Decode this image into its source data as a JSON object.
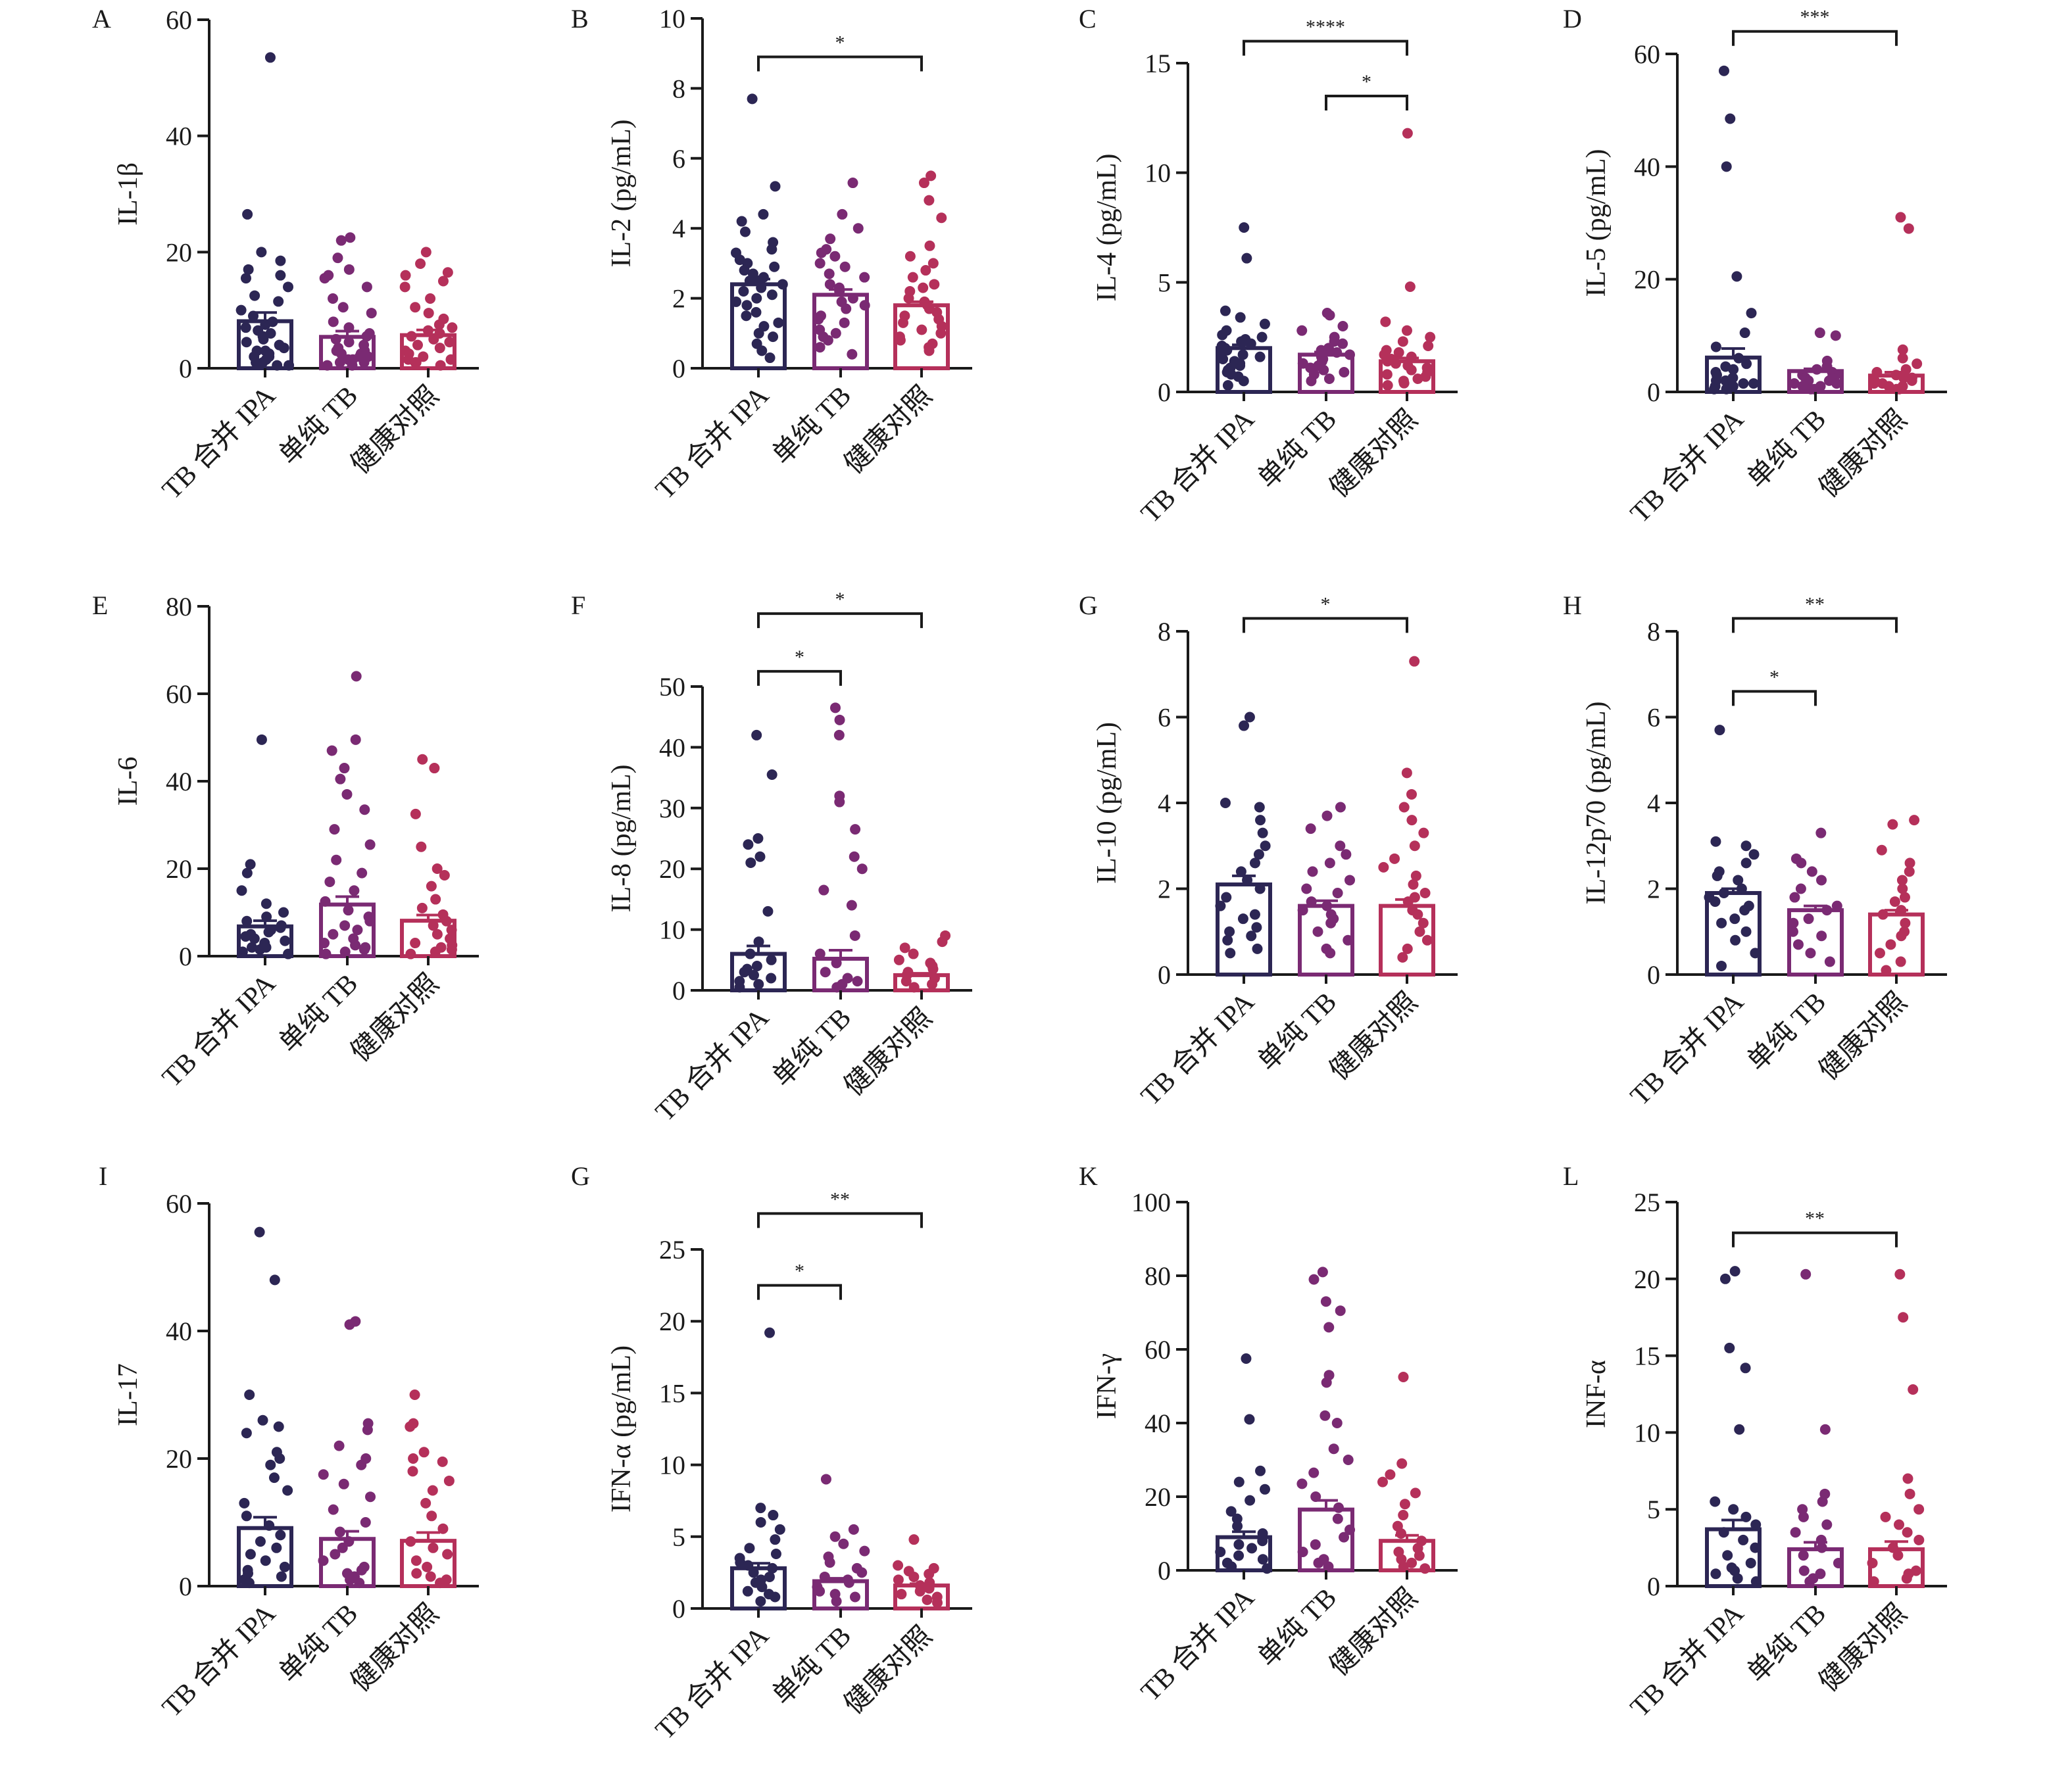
{
  "groups": [
    "TB 合并 IPA",
    "单纯 TB",
    "健康对照"
  ],
  "colors": {
    "TB 合并 IPA": "#2c2654",
    "单纯 TB": "#7a2a73",
    "健康对照": "#b5305a",
    "axis": "#1a1a1a"
  },
  "chart_data": [
    {
      "panel": "A",
      "type": "bar",
      "ylabel": "IL-1β",
      "ylim": [
        0,
        60
      ],
      "yticks": [
        0,
        20,
        40,
        60
      ],
      "categories": [
        "TB 合并 IPA",
        "单纯 TB",
        "健康对照"
      ],
      "values": [
        8.1,
        5.4,
        5.7
      ],
      "errors": [
        1.5,
        1.0,
        0.9
      ],
      "points": [
        [
          53.5,
          26.5,
          20.0,
          18.5,
          17.0,
          16.0,
          15.5,
          14.0,
          12.5,
          11.5,
          10.0,
          9.0,
          8.0,
          7.5,
          7.0,
          6.5,
          6.0,
          5.5,
          5.0,
          4.5,
          4.0,
          3.5,
          3.0,
          3.0,
          2.5,
          2.0,
          2.0,
          1.5,
          1.0,
          1.0,
          0.5,
          0.5
        ],
        [
          22.5,
          22.0,
          19.0,
          17.0,
          16.0,
          15.5,
          14.0,
          12.0,
          10.5,
          9.5,
          8.0,
          7.0,
          6.0,
          5.5,
          5.0,
          4.5,
          4.0,
          3.5,
          3.0,
          3.0,
          2.5,
          2.5,
          2.0,
          2.0,
          1.5,
          1.5,
          1.0,
          1.0,
          0.5,
          0.5
        ],
        [
          20.0,
          18.0,
          16.5,
          16.0,
          15.0,
          14.0,
          12.0,
          10.5,
          9.5,
          8.5,
          7.5,
          7.0,
          6.5,
          6.0,
          5.5,
          5.0,
          4.5,
          4.0,
          3.5,
          3.0,
          2.5,
          2.0,
          1.5,
          1.5,
          1.0,
          1.0,
          0.5
        ]
      ],
      "significance": []
    },
    {
      "panel": "B",
      "type": "bar",
      "ylabel": "IL-2 (pg/mL)",
      "ylim": [
        0,
        10
      ],
      "yticks": [
        0,
        2,
        4,
        6,
        8,
        10
      ],
      "categories": [
        "TB 合并 IPA",
        "单纯 TB",
        "健康对照"
      ],
      "values": [
        2.4,
        2.1,
        1.8
      ],
      "errors": [
        0.15,
        0.15,
        0.1
      ],
      "points": [
        [
          7.7,
          5.2,
          4.4,
          4.2,
          3.9,
          3.6,
          3.4,
          3.3,
          3.1,
          3.0,
          2.9,
          2.8,
          2.7,
          2.6,
          2.5,
          2.5,
          2.4,
          2.3,
          2.2,
          2.1,
          2.0,
          1.9,
          1.8,
          1.6,
          1.5,
          1.3,
          1.2,
          1.0,
          0.9,
          0.7,
          0.5,
          0.3
        ],
        [
          5.3,
          4.4,
          4.0,
          3.7,
          3.4,
          3.3,
          3.2,
          3.0,
          2.9,
          2.7,
          2.6,
          2.4,
          2.3,
          2.2,
          2.0,
          1.9,
          1.8,
          1.7,
          1.5,
          1.4,
          1.3,
          1.1,
          1.0,
          0.9,
          0.8,
          0.6,
          0.4
        ],
        [
          5.5,
          5.3,
          4.8,
          4.3,
          3.5,
          3.2,
          3.0,
          2.8,
          2.6,
          2.4,
          2.3,
          2.2,
          2.0,
          1.9,
          1.8,
          1.7,
          1.6,
          1.5,
          1.4,
          1.3,
          1.2,
          1.1,
          1.0,
          0.9,
          0.8,
          0.7,
          0.6,
          0.5
        ]
      ],
      "significance": [
        {
          "from": 0,
          "to": 2,
          "label": "*",
          "y": 8.9
        }
      ]
    },
    {
      "panel": "C",
      "type": "bar",
      "ylabel": "IL-4 (pg/mL)",
      "ylim": [
        0,
        15
      ],
      "yticks": [
        0,
        5,
        10,
        15
      ],
      "categories": [
        "TB 合并 IPA",
        "单纯 TB",
        "健康对照"
      ],
      "values": [
        2.0,
        1.7,
        1.4
      ],
      "errors": [
        0.15,
        0.12,
        0.15
      ],
      "points": [
        [
          7.5,
          6.1,
          3.7,
          3.4,
          3.1,
          2.8,
          2.6,
          2.5,
          2.4,
          2.3,
          2.2,
          2.1,
          2.0,
          1.9,
          1.8,
          1.7,
          1.6,
          1.5,
          1.4,
          1.3,
          1.2,
          1.1,
          1.0,
          0.9,
          0.8,
          0.7,
          0.5,
          0.3
        ],
        [
          3.6,
          3.5,
          3.0,
          2.8,
          2.5,
          2.3,
          2.2,
          2.0,
          1.9,
          1.8,
          1.7,
          1.6,
          1.5,
          1.4,
          1.3,
          1.2,
          1.1,
          1.0,
          0.9,
          0.8,
          0.6,
          0.5
        ],
        [
          11.8,
          4.8,
          3.2,
          2.8,
          2.5,
          2.3,
          2.1,
          1.9,
          1.8,
          1.7,
          1.6,
          1.5,
          1.4,
          1.3,
          1.2,
          1.1,
          1.0,
          0.9,
          0.8,
          0.7,
          0.6,
          0.5,
          0.4,
          0.3
        ]
      ],
      "significance": [
        {
          "from": 0,
          "to": 2,
          "label": "****",
          "y": 16.0
        },
        {
          "from": 1,
          "to": 2,
          "label": "*",
          "y": 13.5
        }
      ]
    },
    {
      "panel": "D",
      "type": "bar",
      "ylabel": "IL-5 (pg/mL)",
      "ylim": [
        0,
        60
      ],
      "yticks": [
        0,
        20,
        40,
        60
      ],
      "categories": [
        "TB 合并 IPA",
        "单纯 TB",
        "健康对照"
      ],
      "values": [
        6.1,
        3.7,
        2.9
      ],
      "errors": [
        1.6,
        0.4,
        0.6
      ],
      "points": [
        [
          57.0,
          48.5,
          40.0,
          20.5,
          14.0,
          10.5,
          8.0,
          6.0,
          5.0,
          4.5,
          4.0,
          3.5,
          3.0,
          2.5,
          2.0,
          2.0,
          1.5,
          1.5,
          1.0,
          1.0,
          0.5,
          0.5
        ],
        [
          10.5,
          10.0,
          5.5,
          4.5,
          4.0,
          3.5,
          3.0,
          3.0,
          2.5,
          2.5,
          2.0,
          2.0,
          1.5,
          1.5,
          1.0,
          1.0,
          0.5,
          0.5
        ],
        [
          31.0,
          29.0,
          7.5,
          6.0,
          5.0,
          4.0,
          3.5,
          3.0,
          2.5,
          2.5,
          2.0,
          2.0,
          1.5,
          1.5,
          1.0,
          1.0,
          0.5,
          0.5
        ]
      ],
      "significance": [
        {
          "from": 0,
          "to": 2,
          "label": "***",
          "y": 64.0
        }
      ]
    },
    {
      "panel": "E",
      "type": "bar",
      "ylabel": "IL-6",
      "ylim": [
        0,
        80
      ],
      "yticks": [
        0,
        20,
        40,
        60,
        80
      ],
      "categories": [
        "TB 合并 IPA",
        "单纯 TB",
        "健康对照"
      ],
      "values": [
        6.8,
        11.8,
        8.1
      ],
      "errors": [
        1.3,
        1.8,
        1.3
      ],
      "points": [
        [
          49.5,
          21.0,
          19.0,
          15.0,
          12.0,
          10.0,
          9.0,
          8.0,
          7.0,
          6.5,
          6.0,
          5.5,
          5.0,
          4.5,
          4.0,
          3.5,
          3.0,
          2.5,
          2.0,
          2.0,
          1.5,
          1.0,
          0.5
        ],
        [
          64.0,
          49.5,
          47.0,
          43.0,
          40.5,
          37.0,
          33.5,
          29.0,
          25.5,
          22.0,
          19.0,
          17.0,
          15.0,
          12.5,
          10.5,
          9.0,
          8.0,
          7.0,
          6.0,
          5.0,
          4.0,
          3.0,
          2.5,
          2.0,
          1.5,
          1.0,
          0.5
        ],
        [
          45.0,
          43.0,
          32.5,
          25.0,
          20.0,
          18.5,
          16.0,
          13.0,
          11.0,
          9.5,
          8.0,
          7.0,
          6.0,
          5.0,
          4.0,
          3.0,
          2.5,
          2.0,
          1.5,
          1.0,
          0.5
        ]
      ],
      "significance": []
    },
    {
      "panel": "F",
      "type": "bar",
      "ylabel": "IL-8 (pg/mL)",
      "ylim": [
        0,
        50
      ],
      "yticks": [
        0,
        10,
        20,
        30,
        40,
        50
      ],
      "categories": [
        "TB 合并 IPA",
        "单纯 TB",
        "健康对照"
      ],
      "values": [
        6.0,
        5.2,
        2.5
      ],
      "errors": [
        1.3,
        1.4,
        0.3
      ],
      "points": [
        [
          42.0,
          35.5,
          25.0,
          24.0,
          22.0,
          21.0,
          13.0,
          8.0,
          6.0,
          5.0,
          4.0,
          3.5,
          3.0,
          2.5,
          2.0,
          1.5,
          1.0,
          0.5
        ],
        [
          46.5,
          44.5,
          42.0,
          32.0,
          31.0,
          26.5,
          22.0,
          20.0,
          16.5,
          14.0,
          9.0,
          6.0,
          4.5,
          3.0,
          2.0,
          1.5,
          1.0,
          0.5
        ],
        [
          9.0,
          8.0,
          7.0,
          6.0,
          5.0,
          4.5,
          4.0,
          3.5,
          3.0,
          2.5,
          2.0,
          1.5,
          1.0,
          0.5
        ]
      ],
      "significance": [
        {
          "from": 0,
          "to": 2,
          "label": "*",
          "y": 62.0
        },
        {
          "from": 0,
          "to": 1,
          "label": "*",
          "y": 52.5
        }
      ]
    },
    {
      "panel": "G",
      "type": "bar",
      "ylabel": "IL-10 (pg/mL)",
      "ylim": [
        0,
        8
      ],
      "yticks": [
        0,
        2,
        4,
        6,
        8
      ],
      "categories": [
        "TB 合并 IPA",
        "单纯 TB",
        "健康对照"
      ],
      "values": [
        2.1,
        1.6,
        1.6
      ],
      "errors": [
        0.2,
        0.12,
        0.15
      ],
      "points": [
        [
          6.0,
          5.8,
          4.0,
          3.9,
          3.6,
          3.3,
          3.0,
          2.8,
          2.6,
          2.4,
          2.2,
          2.0,
          1.8,
          1.6,
          1.4,
          1.3,
          1.1,
          1.0,
          0.9,
          0.8,
          0.6,
          0.5
        ],
        [
          3.9,
          3.7,
          3.4,
          3.0,
          2.8,
          2.6,
          2.4,
          2.2,
          2.0,
          1.9,
          1.7,
          1.6,
          1.5,
          1.4,
          1.3,
          1.2,
          1.0,
          0.8,
          0.6,
          0.5
        ],
        [
          7.3,
          4.7,
          4.2,
          3.9,
          3.6,
          3.3,
          3.0,
          2.7,
          2.5,
          2.3,
          2.1,
          1.9,
          1.8,
          1.7,
          1.5,
          1.4,
          1.2,
          1.0,
          0.8,
          0.6,
          0.4
        ]
      ],
      "significance": [
        {
          "from": 0,
          "to": 2,
          "label": "*",
          "y": 8.3
        }
      ]
    },
    {
      "panel": "H",
      "type": "bar",
      "ylabel": "IL-12p70 (pg/mL)",
      "ylim": [
        0,
        8
      ],
      "yticks": [
        0,
        2,
        4,
        6,
        8
      ],
      "categories": [
        "TB 合并 IPA",
        "单纯 TB",
        "健康对照"
      ],
      "values": [
        1.9,
        1.5,
        1.4
      ],
      "errors": [
        0.1,
        0.1,
        0.1
      ],
      "points": [
        [
          5.7,
          3.1,
          3.0,
          2.8,
          2.6,
          2.4,
          2.3,
          2.2,
          2.0,
          1.9,
          1.8,
          1.7,
          1.6,
          1.5,
          1.3,
          1.2,
          1.0,
          0.8,
          0.5,
          0.2
        ],
        [
          3.3,
          2.7,
          2.6,
          2.4,
          2.2,
          2.0,
          1.8,
          1.6,
          1.5,
          1.3,
          1.2,
          1.0,
          0.9,
          0.7,
          0.5,
          0.3
        ],
        [
          3.6,
          3.5,
          2.9,
          2.6,
          2.4,
          2.2,
          2.0,
          1.8,
          1.7,
          1.5,
          1.4,
          1.2,
          1.0,
          0.9,
          0.7,
          0.5,
          0.3,
          0.1
        ]
      ],
      "significance": [
        {
          "from": 0,
          "to": 2,
          "label": "**",
          "y": 8.3
        },
        {
          "from": 0,
          "to": 1,
          "label": "*",
          "y": 6.6
        }
      ]
    },
    {
      "panel": "I",
      "type": "bar",
      "ylabel": "IL-17",
      "ylim": [
        0,
        60
      ],
      "yticks": [
        0,
        20,
        40,
        60
      ],
      "categories": [
        "TB 合并 IPA",
        "单纯 TB",
        "健康对照"
      ],
      "values": [
        9.1,
        7.4,
        7.1
      ],
      "errors": [
        1.7,
        1.2,
        1.3
      ],
      "points": [
        [
          55.5,
          48.0,
          30.0,
          26.0,
          25.0,
          24.0,
          21.0,
          20.0,
          19.0,
          17.0,
          15.0,
          13.0,
          11.0,
          9.5,
          8.0,
          7.0,
          6.0,
          5.0,
          4.0,
          3.0,
          2.5,
          2.0,
          1.5,
          1.0,
          0.5
        ],
        [
          41.5,
          41.0,
          25.5,
          24.5,
          22.0,
          20.0,
          19.0,
          17.5,
          16.0,
          14.0,
          12.0,
          10.0,
          8.5,
          7.0,
          6.0,
          5.0,
          4.0,
          3.0,
          2.5,
          2.0,
          1.5,
          1.0,
          0.5
        ],
        [
          30.0,
          25.5,
          25.0,
          21.0,
          20.0,
          19.5,
          18.0,
          16.5,
          15.0,
          13.0,
          11.0,
          9.0,
          7.0,
          6.0,
          5.0,
          4.0,
          3.0,
          2.0,
          1.5,
          1.0,
          0.5
        ]
      ],
      "significance": []
    },
    {
      "panel": "G",
      "type": "bar",
      "ylabel": "IFN-α (pg/mL)",
      "ylim": [
        0,
        25
      ],
      "yticks": [
        0,
        5,
        10,
        15,
        20,
        25
      ],
      "categories": [
        "TB 合并 IPA",
        "单纯 TB",
        "健康对照"
      ],
      "values": [
        2.8,
        1.9,
        1.6
      ],
      "errors": [
        0.35,
        0.2,
        0.12
      ],
      "points": [
        [
          19.2,
          7.0,
          6.5,
          6.0,
          5.5,
          4.8,
          4.2,
          3.8,
          3.5,
          3.2,
          3.0,
          2.8,
          2.5,
          2.2,
          2.0,
          1.8,
          1.5,
          1.2,
          1.0,
          0.8,
          0.5
        ],
        [
          9.0,
          5.5,
          5.0,
          4.5,
          4.0,
          3.6,
          3.2,
          2.8,
          2.5,
          2.2,
          2.0,
          1.8,
          1.5,
          1.2,
          1.0,
          0.8,
          0.5
        ],
        [
          4.8,
          3.0,
          2.8,
          2.6,
          2.4,
          2.2,
          2.0,
          1.8,
          1.6,
          1.4,
          1.2,
          1.0,
          0.8,
          0.6,
          0.4
        ]
      ],
      "significance": [
        {
          "from": 0,
          "to": 2,
          "label": "**",
          "y": 27.5
        },
        {
          "from": 0,
          "to": 1,
          "label": "*",
          "y": 22.5
        }
      ]
    },
    {
      "panel": "K",
      "type": "bar",
      "ylabel": "IFN-γ",
      "ylim": [
        0,
        100
      ],
      "yticks": [
        0,
        20,
        40,
        60,
        80,
        100
      ],
      "categories": [
        "TB 合并 IPA",
        "单纯 TB",
        "健康对照"
      ],
      "values": [
        9.0,
        16.5,
        8.0
      ],
      "errors": [
        1.5,
        2.5,
        1.5
      ],
      "points": [
        [
          57.5,
          41.0,
          27.0,
          24.0,
          22.0,
          19.0,
          16.0,
          14.0,
          12.0,
          10.0,
          8.0,
          7.0,
          6.0,
          5.0,
          4.0,
          3.0,
          2.0,
          1.0,
          0.5
        ],
        [
          81.0,
          79.0,
          73.0,
          70.5,
          66.0,
          53.0,
          51.0,
          42.0,
          40.0,
          33.0,
          30.0,
          26.5,
          23.5,
          20.0,
          17.0,
          14.0,
          11.0,
          9.0,
          7.0,
          5.0,
          3.0,
          2.0,
          1.0
        ],
        [
          52.5,
          29.0,
          26.0,
          24.0,
          21.0,
          18.0,
          15.0,
          12.0,
          10.0,
          8.0,
          6.0,
          5.0,
          4.0,
          3.0,
          2.0,
          1.0,
          0.5
        ]
      ],
      "significance": []
    },
    {
      "panel": "L",
      "type": "bar",
      "ylabel": "INF-α",
      "ylim": [
        0,
        25
      ],
      "yticks": [
        0,
        5,
        10,
        15,
        20,
        25
      ],
      "categories": [
        "TB 合并 IPA",
        "单纯 TB",
        "健康对照"
      ],
      "values": [
        3.7,
        2.4,
        2.4
      ],
      "errors": [
        0.6,
        0.45,
        0.5
      ],
      "points": [
        [
          20.5,
          20.0,
          15.5,
          14.2,
          10.2,
          5.5,
          5.0,
          4.5,
          4.0,
          3.5,
          3.0,
          2.5,
          2.0,
          1.5,
          1.2,
          1.0,
          0.8,
          0.5,
          0.3
        ],
        [
          20.3,
          10.2,
          6.0,
          5.5,
          5.0,
          4.5,
          4.0,
          3.5,
          3.0,
          2.5,
          2.0,
          1.5,
          1.0,
          0.8,
          0.5,
          0.3
        ],
        [
          20.3,
          17.5,
          12.8,
          7.0,
          6.0,
          5.0,
          4.5,
          4.0,
          3.5,
          3.0,
          2.5,
          2.0,
          1.5,
          1.0,
          0.8,
          0.5,
          0.3
        ]
      ],
      "significance": [
        {
          "from": 0,
          "to": 2,
          "label": "**",
          "y": 23.0
        }
      ]
    }
  ]
}
